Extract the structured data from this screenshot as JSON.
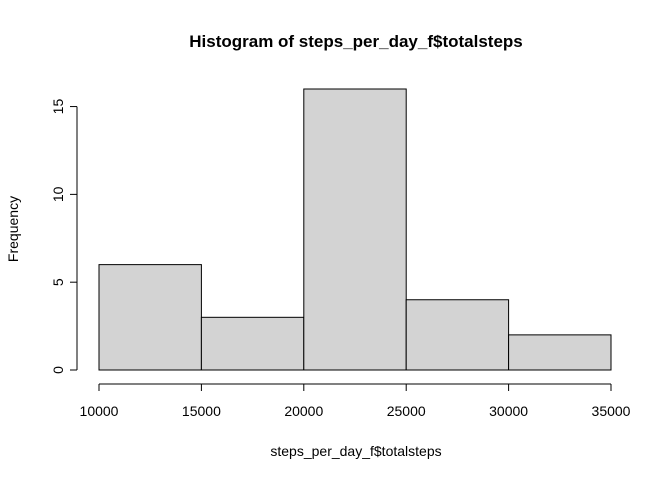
{
  "chart_data": {
    "type": "bar",
    "subtype": "histogram",
    "title": "Histogram of steps_per_day_f$totalsteps",
    "xlabel": "steps_per_day_f$totalsteps",
    "ylabel": "Frequency",
    "bins": [
      {
        "start": 10000,
        "end": 15000,
        "count": 6
      },
      {
        "start": 15000,
        "end": 20000,
        "count": 3
      },
      {
        "start": 20000,
        "end": 25000,
        "count": 16
      },
      {
        "start": 25000,
        "end": 30000,
        "count": 4
      },
      {
        "start": 30000,
        "end": 35000,
        "count": 2
      }
    ],
    "xlim": [
      10000,
      35000
    ],
    "ylim": [
      0,
      16
    ],
    "xticks": [
      10000,
      15000,
      20000,
      25000,
      30000,
      35000
    ],
    "xtick_labels": [
      "10000",
      "15000",
      "20000",
      "25000",
      "30000",
      "35000"
    ],
    "yticks": [
      0,
      5,
      10,
      15
    ],
    "ytick_labels": [
      "0",
      "5",
      "10",
      "15"
    ],
    "grid": false,
    "legend": "none",
    "bar_fill": "#d3d3d3",
    "bar_stroke": "#000000"
  }
}
